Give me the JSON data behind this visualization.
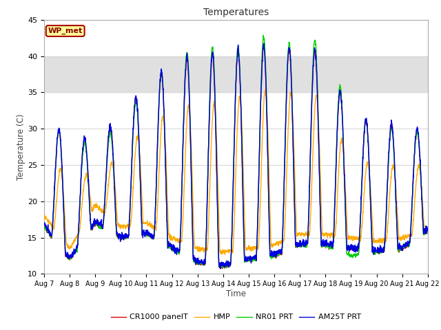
{
  "title": "Temperatures",
  "xlabel": "Time",
  "ylabel": "Temperature (C)",
  "ylim": [
    10,
    45
  ],
  "yticks": [
    10,
    15,
    20,
    25,
    30,
    35,
    40,
    45
  ],
  "shade_band": [
    35,
    40
  ],
  "legend_labels": [
    "CR1000 panelT",
    "HMP",
    "NR01 PRT",
    "AM25T PRT"
  ],
  "line_colors": [
    "#dd0000",
    "#ffaa00",
    "#00cc00",
    "#0000dd"
  ],
  "annotation_text": "WP_met",
  "annotation_bg": "#ffff99",
  "annotation_border": "#aa0000",
  "annotation_text_color": "#880000",
  "background_color": "#ffffff",
  "grid_color": "#d8d8d8",
  "n_days": 15,
  "start_day": 7,
  "figsize": [
    6.4,
    4.8
  ],
  "dpi": 100
}
